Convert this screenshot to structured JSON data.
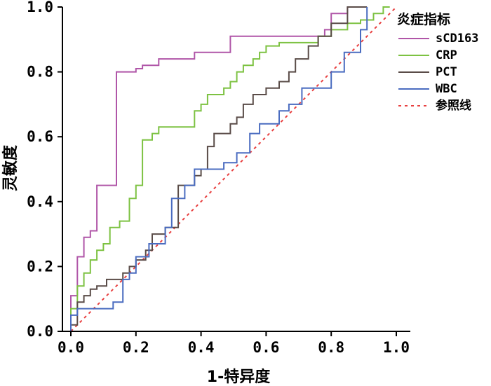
{
  "chart_data": {
    "type": "line",
    "xlabel": "1-特异度",
    "ylabel": "灵敏度",
    "xlim": [
      -0.05,
      1.05
    ],
    "ylim": [
      0,
      1
    ],
    "xticks": [
      "0.0",
      "0.2",
      "0.4",
      "0.6",
      "0.8",
      "1.0"
    ],
    "yticks": [
      "0.0",
      "0.2",
      "0.4",
      "0.6",
      "0.8",
      "1.0"
    ],
    "grid": false,
    "legend": {
      "title": "炎症指标",
      "position": "top-right"
    },
    "series": [
      {
        "name": "sCD163",
        "color": "#b056a8",
        "style": "step",
        "x": [
          0.0,
          0.0,
          0.02,
          0.02,
          0.04,
          0.04,
          0.06,
          0.06,
          0.08,
          0.08,
          0.14,
          0.14,
          0.2,
          0.2,
          0.22,
          0.22,
          0.27,
          0.27,
          0.38,
          0.38,
          0.49,
          0.49,
          0.78,
          0.78,
          0.8,
          0.8,
          0.85,
          0.85
        ],
        "y": [
          0.0,
          0.11,
          0.11,
          0.23,
          0.23,
          0.29,
          0.29,
          0.31,
          0.31,
          0.45,
          0.45,
          0.8,
          0.8,
          0.81,
          0.81,
          0.82,
          0.82,
          0.84,
          0.84,
          0.86,
          0.86,
          0.91,
          0.91,
          0.93,
          0.93,
          0.98,
          0.98,
          1.0
        ]
      },
      {
        "name": "CRP",
        "color": "#7dc242",
        "style": "step",
        "x": [
          0.0,
          0.0,
          0.02,
          0.02,
          0.04,
          0.04,
          0.06,
          0.06,
          0.08,
          0.08,
          0.1,
          0.1,
          0.12,
          0.12,
          0.15,
          0.15,
          0.18,
          0.18,
          0.2,
          0.2,
          0.22,
          0.22,
          0.25,
          0.25,
          0.27,
          0.27,
          0.38,
          0.38,
          0.4,
          0.4,
          0.42,
          0.42,
          0.47,
          0.47,
          0.49,
          0.49,
          0.51,
          0.51,
          0.53,
          0.53,
          0.56,
          0.56,
          0.58,
          0.58,
          0.6,
          0.6,
          0.64,
          0.64,
          0.76,
          0.76,
          0.8,
          0.8,
          0.85,
          0.85,
          0.89,
          0.89,
          0.93,
          0.93,
          0.96,
          0.96,
          0.98,
          0.98
        ],
        "y": [
          0.0,
          0.07,
          0.07,
          0.14,
          0.14,
          0.18,
          0.18,
          0.22,
          0.22,
          0.25,
          0.25,
          0.27,
          0.27,
          0.32,
          0.32,
          0.34,
          0.34,
          0.41,
          0.41,
          0.45,
          0.45,
          0.59,
          0.59,
          0.61,
          0.61,
          0.63,
          0.63,
          0.68,
          0.68,
          0.7,
          0.7,
          0.73,
          0.73,
          0.75,
          0.75,
          0.77,
          0.77,
          0.8,
          0.8,
          0.82,
          0.82,
          0.84,
          0.84,
          0.86,
          0.86,
          0.88,
          0.88,
          0.89,
          0.89,
          0.91,
          0.91,
          0.93,
          0.93,
          0.95,
          0.95,
          0.96,
          0.96,
          0.98,
          0.98,
          1.0,
          1.0,
          1.0
        ]
      },
      {
        "name": "PCT",
        "color": "#5a4c48",
        "style": "step",
        "x": [
          0.0,
          0.0,
          0.02,
          0.02,
          0.04,
          0.04,
          0.06,
          0.06,
          0.08,
          0.08,
          0.11,
          0.11,
          0.13,
          0.13,
          0.16,
          0.16,
          0.18,
          0.18,
          0.2,
          0.2,
          0.23,
          0.23,
          0.25,
          0.25,
          0.29,
          0.29,
          0.33,
          0.33,
          0.36,
          0.36,
          0.38,
          0.38,
          0.4,
          0.4,
          0.42,
          0.42,
          0.44,
          0.44,
          0.49,
          0.49,
          0.51,
          0.51,
          0.53,
          0.53,
          0.56,
          0.56,
          0.6,
          0.6,
          0.64,
          0.64,
          0.67,
          0.67,
          0.69,
          0.69,
          0.73,
          0.73,
          0.76,
          0.76,
          0.78,
          0.78,
          0.8,
          0.8,
          0.85,
          0.85,
          0.89,
          0.89,
          0.91
        ],
        "y": [
          0.0,
          0.02,
          0.02,
          0.09,
          0.09,
          0.11,
          0.11,
          0.13,
          0.13,
          0.14,
          0.14,
          0.16,
          0.16,
          0.16,
          0.16,
          0.18,
          0.18,
          0.2,
          0.2,
          0.22,
          0.22,
          0.25,
          0.25,
          0.3,
          0.3,
          0.32,
          0.32,
          0.45,
          0.45,
          0.45,
          0.45,
          0.48,
          0.48,
          0.5,
          0.5,
          0.57,
          0.57,
          0.61,
          0.61,
          0.64,
          0.64,
          0.66,
          0.66,
          0.7,
          0.7,
          0.73,
          0.73,
          0.75,
          0.75,
          0.77,
          0.77,
          0.8,
          0.8,
          0.84,
          0.84,
          0.88,
          0.88,
          0.91,
          0.91,
          0.91,
          0.91,
          0.95,
          0.95,
          1.0,
          1.0,
          1.0,
          1.0
        ]
      },
      {
        "name": "WBC",
        "color": "#4a6cc0",
        "style": "step",
        "x": [
          0.0,
          0.0,
          0.02,
          0.02,
          0.04,
          0.04,
          0.06,
          0.06,
          0.13,
          0.13,
          0.16,
          0.16,
          0.18,
          0.18,
          0.2,
          0.2,
          0.24,
          0.24,
          0.29,
          0.29,
          0.31,
          0.31,
          0.35,
          0.35,
          0.38,
          0.38,
          0.42,
          0.42,
          0.47,
          0.47,
          0.51,
          0.51,
          0.55,
          0.55,
          0.58,
          0.58,
          0.64,
          0.64,
          0.67,
          0.67,
          0.71,
          0.71,
          0.76,
          0.76,
          0.8,
          0.8,
          0.84,
          0.84,
          0.89,
          0.89,
          0.91,
          0.91
        ],
        "y": [
          0.0,
          0.05,
          0.05,
          0.07,
          0.07,
          0.07,
          0.07,
          0.07,
          0.07,
          0.09,
          0.09,
          0.16,
          0.16,
          0.18,
          0.18,
          0.23,
          0.23,
          0.27,
          0.27,
          0.32,
          0.32,
          0.41,
          0.41,
          0.45,
          0.45,
          0.5,
          0.5,
          0.5,
          0.5,
          0.52,
          0.52,
          0.55,
          0.55,
          0.61,
          0.61,
          0.64,
          0.64,
          0.68,
          0.68,
          0.7,
          0.7,
          0.75,
          0.75,
          0.75,
          0.75,
          0.8,
          0.8,
          0.86,
          0.86,
          0.93,
          0.93,
          1.0
        ]
      },
      {
        "name": "参照线",
        "color": "#e84040",
        "style": "dashed",
        "x": [
          0.0,
          1.0
        ],
        "y": [
          0.0,
          1.0
        ]
      }
    ]
  }
}
